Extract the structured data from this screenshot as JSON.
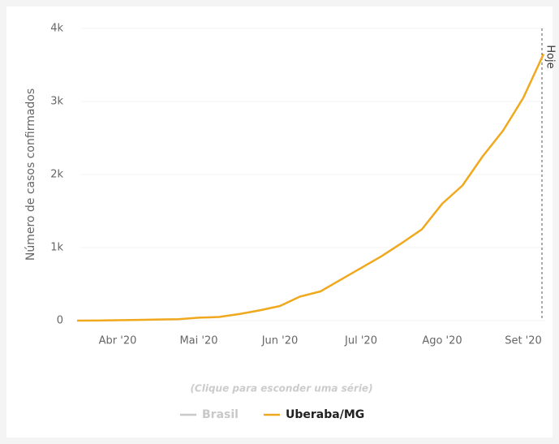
{
  "chart_data": {
    "type": "line",
    "y_label": "Número de casos confirmados",
    "categories": [
      null,
      null,
      "Abr '20",
      null,
      null,
      null,
      "Mai '20",
      null,
      null,
      null,
      "Jun '20",
      null,
      null,
      null,
      "Jul '20",
      null,
      null,
      null,
      "Ago '20",
      null,
      null,
      null,
      "Set '20",
      null
    ],
    "series": [
      {
        "name": "Brasil",
        "color": "#c8c8c8",
        "values": [
          null,
          null,
          null,
          null,
          null,
          null,
          null,
          null,
          null,
          null,
          null,
          null,
          null,
          null,
          null,
          null,
          null,
          null,
          null,
          null,
          null,
          null,
          null,
          null
        ]
      },
      {
        "name": "Uberaba/MG",
        "color": "#f0a81c",
        "values": [
          0,
          2,
          5,
          10,
          15,
          20,
          40,
          50,
          90,
          140,
          200,
          330,
          400,
          560,
          720,
          880,
          1060,
          1250,
          1600,
          1850,
          2250,
          2600,
          3050,
          3650
        ]
      }
    ],
    "ylim": [
      0,
      4000
    ],
    "yticks": [
      {
        "value": 0,
        "label": "0"
      },
      {
        "value": 1000,
        "label": "1k"
      },
      {
        "value": 2000,
        "label": "2k"
      },
      {
        "value": 3000,
        "label": "3k"
      },
      {
        "value": 4000,
        "label": "4k"
      }
    ],
    "grid": true,
    "annotation": "Hoje",
    "legend_hint": "(Clique para esconder uma série)"
  }
}
